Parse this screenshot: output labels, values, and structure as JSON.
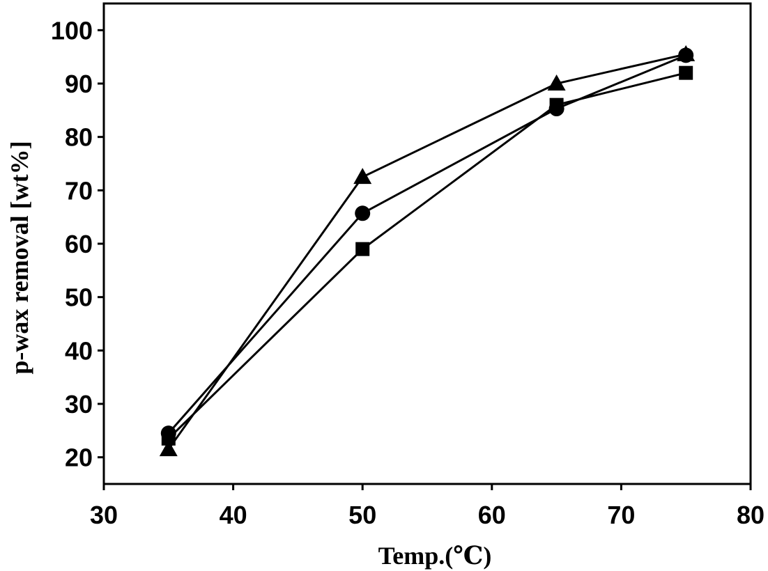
{
  "chart_data": {
    "type": "line",
    "xlabel": "Temp.(℃)",
    "ylabel": "p-wax removal [wt%]",
    "xlim": [
      30,
      80
    ],
    "ylim": [
      15,
      105
    ],
    "xticks": [
      30,
      40,
      50,
      60,
      70,
      80
    ],
    "yticks": [
      20,
      30,
      40,
      50,
      60,
      70,
      80,
      90,
      100
    ],
    "x": [
      35,
      50,
      65,
      75
    ],
    "series": [
      {
        "marker": "square",
        "values": [
          23.5,
          59,
          86,
          92
        ]
      },
      {
        "marker": "circle",
        "values": [
          24.5,
          65.7,
          85.3,
          95.3
        ]
      },
      {
        "marker": "triangle",
        "values": [
          21.5,
          72.5,
          90,
          95.5
        ]
      }
    ],
    "grid": false,
    "legend": "none",
    "colors": {
      "line": "#000000",
      "marker": "#000000",
      "background": "#ffffff"
    }
  }
}
